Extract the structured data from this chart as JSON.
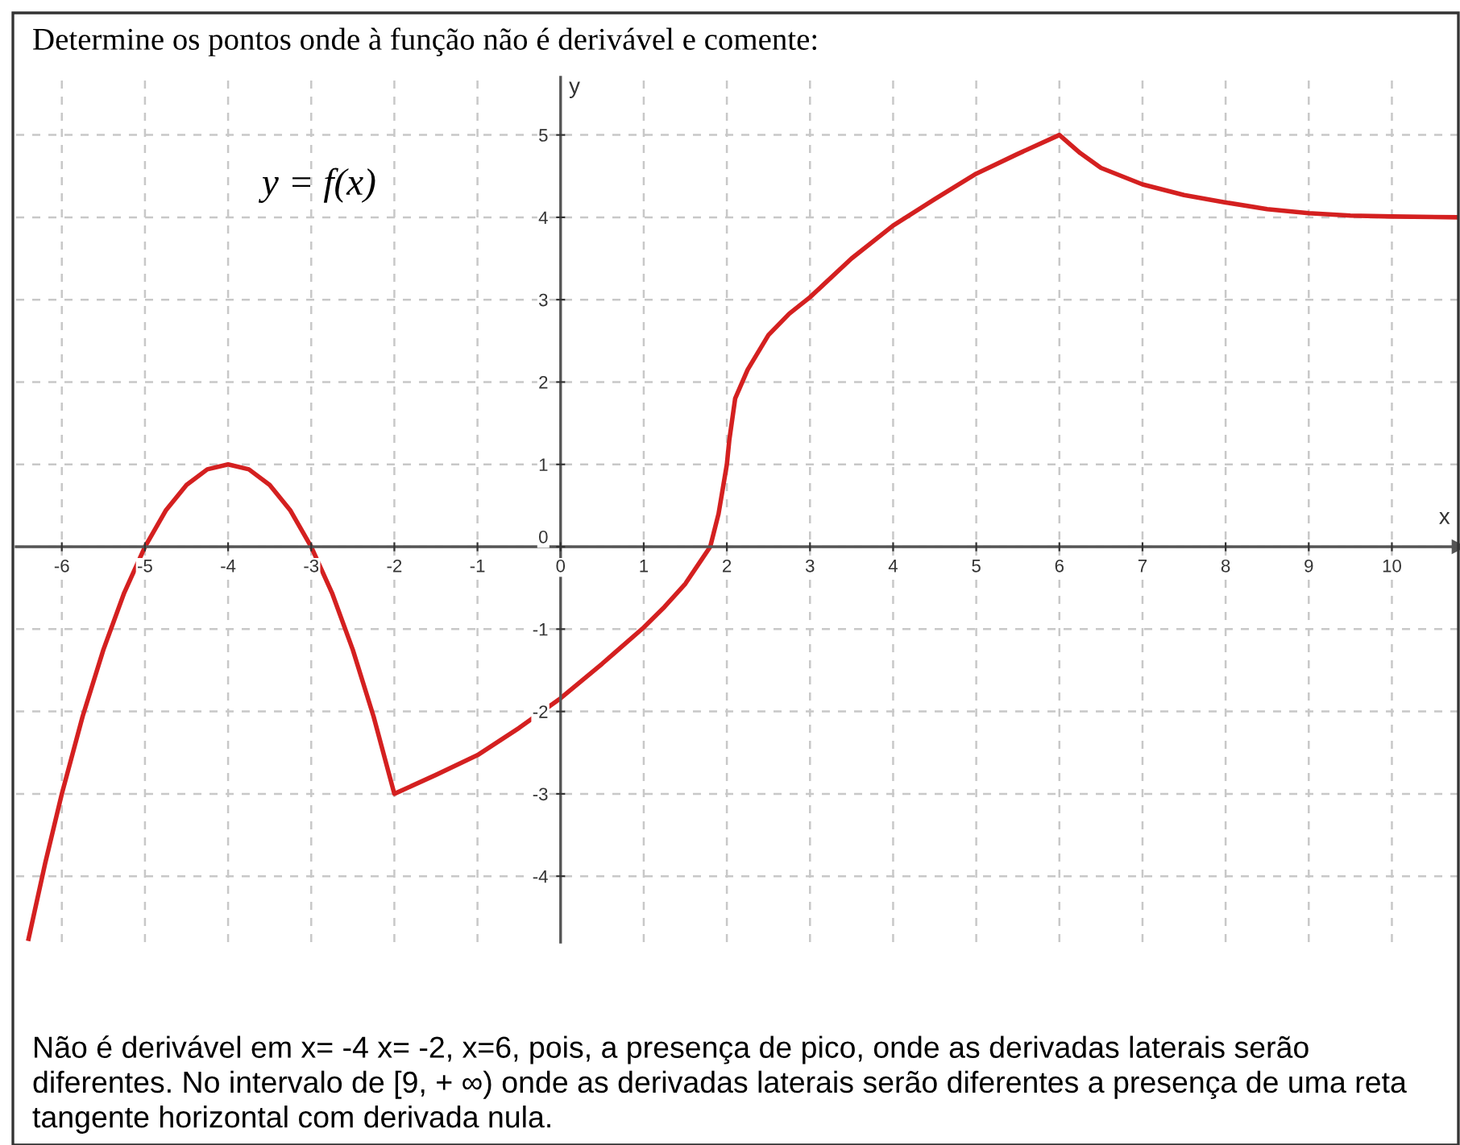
{
  "chart_data": {
    "type": "line",
    "title": "Determine os pontos onde à função não é derivável e comente:",
    "xlabel": "x",
    "ylabel": "y",
    "series": [
      {
        "color": "#d42020",
        "x": [
          -6.4,
          -6.2,
          -6.0,
          -5.75,
          -5.5,
          -5.25,
          -5.0,
          -4.75,
          -4.5,
          -4.25,
          -4.0,
          -3.75,
          -3.5,
          -3.25,
          -3.0,
          -2.75,
          -2.5,
          -2.25,
          -2.0,
          -1.5,
          -1.0,
          -0.5,
          0.0,
          0.5,
          1.0,
          1.25,
          1.5,
          1.7,
          1.8,
          1.9,
          1.95,
          2.0,
          2.03,
          2.1,
          2.25,
          2.5,
          2.75,
          3.0,
          3.5,
          4.0,
          4.5,
          5.0,
          5.5,
          6.0,
          6.25,
          6.5,
          7.0,
          7.5,
          8.0,
          8.5,
          9.0,
          9.5,
          10.0,
          10.8
        ],
        "values": [
          -4.76,
          -3.84,
          -3.0,
          -2.06,
          -1.25,
          -0.56,
          0.0,
          0.44,
          0.75,
          0.94,
          1.0,
          0.94,
          0.75,
          0.44,
          0.0,
          -0.56,
          -1.25,
          -2.06,
          -3.0,
          -2.77,
          -2.53,
          -2.2,
          -1.84,
          -1.42,
          -0.98,
          -0.73,
          -0.45,
          -0.15,
          0.0,
          0.4,
          0.7,
          1.0,
          1.3,
          1.8,
          2.15,
          2.57,
          2.83,
          3.03,
          3.5,
          3.9,
          4.22,
          4.53,
          4.77,
          5.0,
          4.78,
          4.6,
          4.4,
          4.27,
          4.18,
          4.1,
          4.05,
          4.02,
          4.01,
          4.0
        ]
      }
    ],
    "xlim": [
      -6.55,
      10.8
    ],
    "ylim": [
      -4.8,
      5.7
    ],
    "xticks": [
      -6,
      -5,
      -4,
      -3,
      -2,
      -1,
      0,
      1,
      2,
      3,
      4,
      5,
      6,
      7,
      8,
      9,
      10
    ],
    "yticks": [
      -4,
      -3,
      -2,
      -1,
      0,
      1,
      2,
      3,
      4,
      5
    ],
    "grid": true,
    "marker": "none",
    "line_style": "solid",
    "annotations": [
      "y = f(x)",
      "Não é derivável em x= -4 x= -2, x=6, pois, a presença de pico, onde as derivadas laterais serão diferentes. No intervalo de [9, + ∞) onde as derivadas laterais serão diferentes a presença de uma reta tangente horizontal com derivada nula."
    ]
  }
}
